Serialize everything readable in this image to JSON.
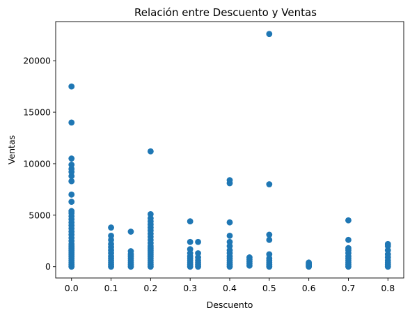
{
  "chart_data": {
    "type": "scatter",
    "title": "Relación entre Descuento y Ventas",
    "xlabel": "Descuento",
    "ylabel": "Ventas",
    "xlim": [
      -0.04,
      0.84
    ],
    "ylim": [
      -1100,
      23800
    ],
    "xticks": [
      0.0,
      0.1,
      0.2,
      0.3,
      0.4,
      0.5,
      0.6,
      0.7,
      0.8
    ],
    "xtick_labels": [
      "0.0",
      "0.1",
      "0.2",
      "0.3",
      "0.4",
      "0.5",
      "0.6",
      "0.7",
      "0.8"
    ],
    "yticks": [
      0,
      5000,
      10000,
      15000,
      20000
    ],
    "ytick_labels": [
      "0",
      "5000",
      "10000",
      "15000",
      "20000"
    ],
    "grid": false,
    "marker_color": "#1f77b4",
    "series": [
      {
        "points": [
          [
            0.0,
            0
          ],
          [
            0.0,
            200
          ],
          [
            0.0,
            400
          ],
          [
            0.0,
            600
          ],
          [
            0.0,
            800
          ],
          [
            0.0,
            1000
          ],
          [
            0.0,
            1200
          ],
          [
            0.0,
            1400
          ],
          [
            0.0,
            1600
          ],
          [
            0.0,
            1800
          ],
          [
            0.0,
            2000
          ],
          [
            0.0,
            2200
          ],
          [
            0.0,
            2500
          ],
          [
            0.0,
            2800
          ],
          [
            0.0,
            3100
          ],
          [
            0.0,
            3400
          ],
          [
            0.0,
            3700
          ],
          [
            0.0,
            4000
          ],
          [
            0.0,
            4300
          ],
          [
            0.0,
            4600
          ],
          [
            0.0,
            4900
          ],
          [
            0.0,
            5200
          ],
          [
            0.0,
            5400
          ],
          [
            0.0,
            6300
          ],
          [
            0.0,
            7000
          ],
          [
            0.0,
            8300
          ],
          [
            0.0,
            8800
          ],
          [
            0.0,
            9200
          ],
          [
            0.0,
            9500
          ],
          [
            0.0,
            9900
          ],
          [
            0.0,
            10500
          ],
          [
            0.0,
            14000
          ],
          [
            0.0,
            17500
          ],
          [
            0.1,
            0
          ],
          [
            0.1,
            200
          ],
          [
            0.1,
            400
          ],
          [
            0.1,
            600
          ],
          [
            0.1,
            800
          ],
          [
            0.1,
            1000
          ],
          [
            0.1,
            1300
          ],
          [
            0.1,
            1600
          ],
          [
            0.1,
            1900
          ],
          [
            0.1,
            2200
          ],
          [
            0.1,
            2600
          ],
          [
            0.1,
            3000
          ],
          [
            0.1,
            3800
          ],
          [
            0.15,
            0
          ],
          [
            0.15,
            200
          ],
          [
            0.15,
            400
          ],
          [
            0.15,
            600
          ],
          [
            0.15,
            800
          ],
          [
            0.15,
            1000
          ],
          [
            0.15,
            1200
          ],
          [
            0.15,
            1500
          ],
          [
            0.15,
            3400
          ],
          [
            0.2,
            0
          ],
          [
            0.2,
            200
          ],
          [
            0.2,
            400
          ],
          [
            0.2,
            600
          ],
          [
            0.2,
            800
          ],
          [
            0.2,
            1000
          ],
          [
            0.2,
            1200
          ],
          [
            0.2,
            1400
          ],
          [
            0.2,
            1600
          ],
          [
            0.2,
            1800
          ],
          [
            0.2,
            2000
          ],
          [
            0.2,
            2300
          ],
          [
            0.2,
            2600
          ],
          [
            0.2,
            2900
          ],
          [
            0.2,
            3200
          ],
          [
            0.2,
            3500
          ],
          [
            0.2,
            3800
          ],
          [
            0.2,
            4100
          ],
          [
            0.2,
            4400
          ],
          [
            0.2,
            4700
          ],
          [
            0.2,
            5100
          ],
          [
            0.2,
            11200
          ],
          [
            0.3,
            0
          ],
          [
            0.3,
            200
          ],
          [
            0.3,
            400
          ],
          [
            0.3,
            600
          ],
          [
            0.3,
            800
          ],
          [
            0.3,
            1000
          ],
          [
            0.3,
            1300
          ],
          [
            0.3,
            1700
          ],
          [
            0.3,
            2400
          ],
          [
            0.3,
            4400
          ],
          [
            0.32,
            0
          ],
          [
            0.32,
            200
          ],
          [
            0.32,
            400
          ],
          [
            0.32,
            600
          ],
          [
            0.32,
            900
          ],
          [
            0.32,
            1300
          ],
          [
            0.32,
            2400
          ],
          [
            0.4,
            0
          ],
          [
            0.4,
            200
          ],
          [
            0.4,
            400
          ],
          [
            0.4,
            600
          ],
          [
            0.4,
            800
          ],
          [
            0.4,
            1000
          ],
          [
            0.4,
            1300
          ],
          [
            0.4,
            1600
          ],
          [
            0.4,
            2000
          ],
          [
            0.4,
            2400
          ],
          [
            0.4,
            3000
          ],
          [
            0.4,
            4300
          ],
          [
            0.4,
            8100
          ],
          [
            0.4,
            8400
          ],
          [
            0.45,
            100
          ],
          [
            0.45,
            300
          ],
          [
            0.45,
            500
          ],
          [
            0.45,
            700
          ],
          [
            0.45,
            900
          ],
          [
            0.5,
            0
          ],
          [
            0.5,
            200
          ],
          [
            0.5,
            400
          ],
          [
            0.5,
            600
          ],
          [
            0.5,
            800
          ],
          [
            0.5,
            1200
          ],
          [
            0.5,
            2600
          ],
          [
            0.5,
            3100
          ],
          [
            0.5,
            8000
          ],
          [
            0.5,
            22600
          ],
          [
            0.6,
            0
          ],
          [
            0.6,
            100
          ],
          [
            0.6,
            200
          ],
          [
            0.6,
            300
          ],
          [
            0.6,
            400
          ],
          [
            0.7,
            0
          ],
          [
            0.7,
            200
          ],
          [
            0.7,
            400
          ],
          [
            0.7,
            600
          ],
          [
            0.7,
            800
          ],
          [
            0.7,
            1000
          ],
          [
            0.7,
            1300
          ],
          [
            0.7,
            1600
          ],
          [
            0.7,
            1800
          ],
          [
            0.7,
            2600
          ],
          [
            0.7,
            4500
          ],
          [
            0.8,
            0
          ],
          [
            0.8,
            200
          ],
          [
            0.8,
            400
          ],
          [
            0.8,
            600
          ],
          [
            0.8,
            900
          ],
          [
            0.8,
            1200
          ],
          [
            0.8,
            1600
          ],
          [
            0.8,
            2000
          ],
          [
            0.8,
            2200
          ]
        ]
      }
    ]
  }
}
